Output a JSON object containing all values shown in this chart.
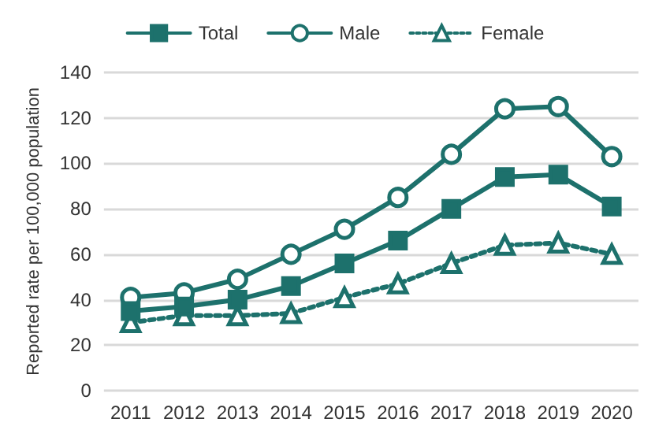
{
  "chart_data": {
    "type": "line",
    "ylabel": "Reported rate per 100,000 population",
    "categories": [
      "2011",
      "2012",
      "2013",
      "2014",
      "2015",
      "2016",
      "2017",
      "2018",
      "2019",
      "2020"
    ],
    "series": [
      {
        "name": "Total",
        "color": "#1d716c",
        "marker": "square",
        "line_style": "solid",
        "values": [
          35,
          37,
          40,
          46,
          56,
          66,
          80,
          94,
          95,
          81
        ]
      },
      {
        "name": "Male",
        "color": "#1d716c",
        "marker": "circle",
        "line_style": "solid",
        "values": [
          41,
          43,
          49,
          60,
          71,
          85,
          104,
          124,
          125,
          103
        ]
      },
      {
        "name": "Female",
        "color": "#1d716c",
        "marker": "triangle",
        "line_style": "dotted",
        "values": [
          30,
          33,
          33,
          34,
          41,
          47,
          56,
          64,
          65,
          60
        ]
      }
    ],
    "ylim": [
      0,
      140
    ],
    "yticks": [
      0,
      20,
      40,
      60,
      80,
      100,
      120,
      140
    ],
    "grid": "y",
    "legend": "top"
  }
}
